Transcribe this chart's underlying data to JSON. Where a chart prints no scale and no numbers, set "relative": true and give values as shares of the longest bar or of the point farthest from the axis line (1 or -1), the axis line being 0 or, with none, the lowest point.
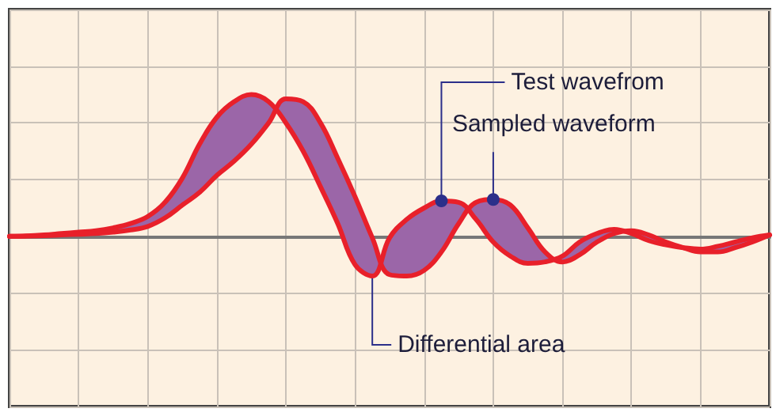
{
  "chart_data": {
    "type": "line",
    "relative": true,
    "grid": true,
    "legend": false,
    "marker": "none",
    "line_style": "solid",
    "categories": [
      null,
      null,
      null,
      null,
      null,
      null,
      null,
      null,
      null,
      null,
      null,
      null,
      null,
      null,
      null,
      null,
      null,
      null,
      null,
      null,
      null,
      null,
      null,
      null,
      null,
      null,
      null,
      null,
      null,
      null,
      null,
      null,
      null,
      null,
      null,
      null,
      null,
      null,
      null,
      null,
      null,
      null,
      null,
      null,
      null
    ],
    "series": [
      {
        "name": "Test wavefrom",
        "color": "#e8202a",
        "values": [
          0,
          0.003,
          0.01,
          0.02,
          0.03,
          0.04,
          0.06,
          0.09,
          0.14,
          0.24,
          0.41,
          0.65,
          0.84,
          0.95,
          1,
          0.95,
          0.8,
          0.6,
          0.35,
          0.09,
          -0.2,
          -0.28,
          -0.01,
          0.12,
          0.2,
          0.25,
          0.24,
          0.12,
          -0.04,
          -0.14,
          -0.19,
          -0.18,
          -0.14,
          -0.04,
          0.02,
          0.05,
          0.02,
          -0.03,
          -0.06,
          -0.08,
          -0.09,
          -0.07,
          -0.04,
          -0.01,
          0.01
        ]
      },
      {
        "name": "Sampled waveform",
        "color": "#e8202a",
        "values": [
          0,
          0.002,
          0.005,
          0.01,
          0.015,
          0.02,
          0.03,
          0.045,
          0.07,
          0.13,
          0.22,
          0.31,
          0.43,
          0.53,
          0.65,
          0.8,
          0.97,
          0.95,
          0.8,
          0.55,
          0.28,
          -0.01,
          -0.27,
          -0.28,
          -0.24,
          -0.11,
          0.09,
          0.24,
          0.26,
          0.22,
          0.06,
          -0.11,
          -0.18,
          -0.13,
          -0.04,
          0.02,
          0.04,
          0.01,
          -0.04,
          -0.08,
          -0.11,
          -0.11,
          -0.08,
          -0.04,
          0.01
        ]
      }
    ],
    "annotations": [
      "Differential area"
    ]
  }
}
